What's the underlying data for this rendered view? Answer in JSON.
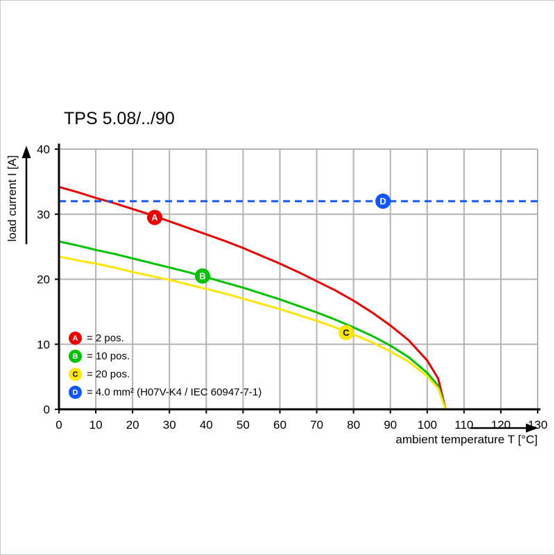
{
  "title": "TPS 5.08/../90",
  "chart_data": {
    "type": "line",
    "title": "TPS 5.08/../90",
    "xlabel": "ambient temperature T [°C]",
    "ylabel": "load current I [A]",
    "xlim": [
      0,
      130
    ],
    "ylim": [
      0,
      40
    ],
    "x_ticks": [
      0,
      10,
      20,
      30,
      40,
      50,
      60,
      70,
      80,
      90,
      100,
      110,
      120,
      130
    ],
    "y_ticks": [
      0,
      10,
      20,
      30,
      40
    ],
    "grid": true,
    "grid_color": "#b3b3b3",
    "axis_color": "#000000",
    "legend_position": "lower-left-inside",
    "series": [
      {
        "id": "A",
        "legend_label": "= 2 pos.",
        "color": "#ee0000",
        "letter_color": "#ffffff",
        "style": "solid",
        "marker": {
          "x": 26,
          "y": 29.5
        },
        "points": [
          [
            0,
            34.2
          ],
          [
            5,
            33.4
          ],
          [
            10,
            32.5
          ],
          [
            15,
            31.7
          ],
          [
            20,
            30.8
          ],
          [
            25,
            29.9
          ],
          [
            30,
            28.9
          ],
          [
            35,
            27.9
          ],
          [
            40,
            26.9
          ],
          [
            45,
            25.9
          ],
          [
            50,
            24.8
          ],
          [
            55,
            23.6
          ],
          [
            60,
            22.4
          ],
          [
            65,
            21.1
          ],
          [
            70,
            19.7
          ],
          [
            75,
            18.3
          ],
          [
            80,
            16.7
          ],
          [
            85,
            14.9
          ],
          [
            90,
            12.9
          ],
          [
            95,
            10.6
          ],
          [
            100,
            7.5
          ],
          [
            103,
            4.7
          ],
          [
            105,
            0
          ]
        ]
      },
      {
        "id": "B",
        "legend_label": "= 10 pos.",
        "color": "#00c300",
        "letter_color": "#ffffff",
        "style": "solid",
        "marker": {
          "x": 39,
          "y": 20.5
        },
        "points": [
          [
            0,
            25.8
          ],
          [
            5,
            25.2
          ],
          [
            10,
            24.5
          ],
          [
            15,
            23.9
          ],
          [
            20,
            23.2
          ],
          [
            25,
            22.5
          ],
          [
            30,
            21.8
          ],
          [
            35,
            21.1
          ],
          [
            40,
            20.3
          ],
          [
            45,
            19.5
          ],
          [
            50,
            18.7
          ],
          [
            55,
            17.8
          ],
          [
            60,
            16.9
          ],
          [
            65,
            15.9
          ],
          [
            70,
            14.9
          ],
          [
            75,
            13.8
          ],
          [
            80,
            12.6
          ],
          [
            85,
            11.3
          ],
          [
            90,
            9.8
          ],
          [
            95,
            8.0
          ],
          [
            100,
            5.6
          ],
          [
            103,
            3.6
          ],
          [
            105,
            0
          ]
        ]
      },
      {
        "id": "C",
        "legend_label": "= 20 pos.",
        "color": "#ffe600",
        "letter_color": "#000000",
        "style": "solid",
        "marker": {
          "x": 78,
          "y": 11.8
        },
        "points": [
          [
            0,
            23.5
          ],
          [
            5,
            22.9
          ],
          [
            10,
            22.4
          ],
          [
            15,
            21.8
          ],
          [
            20,
            21.1
          ],
          [
            25,
            20.5
          ],
          [
            30,
            19.9
          ],
          [
            35,
            19.2
          ],
          [
            40,
            18.5
          ],
          [
            45,
            17.8
          ],
          [
            50,
            17.0
          ],
          [
            55,
            16.2
          ],
          [
            60,
            15.4
          ],
          [
            65,
            14.5
          ],
          [
            70,
            13.6
          ],
          [
            75,
            12.6
          ],
          [
            80,
            11.5
          ],
          [
            85,
            10.3
          ],
          [
            90,
            8.9
          ],
          [
            95,
            7.3
          ],
          [
            100,
            5.1
          ],
          [
            103,
            3.2
          ],
          [
            105,
            0
          ]
        ]
      },
      {
        "id": "D",
        "legend_label": "= 4.0 mm² (H07V-K4 / IEC 60947-7-1)",
        "color": "#1155ff",
        "letter_color": "#ffffff",
        "style": "dashed",
        "marker": {
          "x": 88,
          "y": 32
        },
        "points": [
          [
            0,
            32
          ],
          [
            130,
            32
          ]
        ]
      }
    ]
  }
}
